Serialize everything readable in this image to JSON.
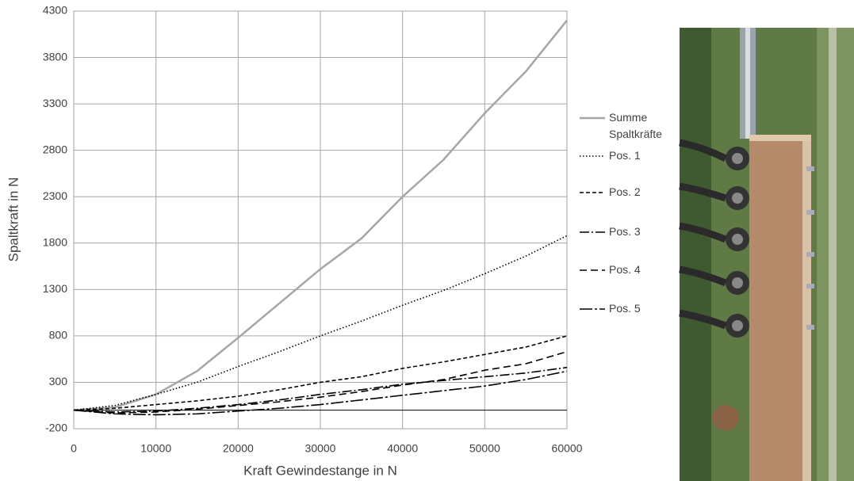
{
  "chart_data": {
    "type": "line",
    "x_label": "Kraft Gewindestange in N",
    "y_label": "Spaltkraft in N",
    "x": [
      0,
      5000,
      10000,
      15000,
      20000,
      25000,
      30000,
      35000,
      40000,
      45000,
      50000,
      55000,
      60000
    ],
    "series": [
      {
        "name": "Summe Spaltkräfte",
        "color": "#a6a6a6",
        "style": "solid",
        "values": [
          0,
          30,
          170,
          420,
          780,
          1150,
          1520,
          1850,
          2300,
          2700,
          3200,
          3650,
          4200
        ]
      },
      {
        "name": "Pos. 1",
        "color": "#000000",
        "style": "dotted",
        "values": [
          0,
          50,
          170,
          300,
          470,
          630,
          800,
          960,
          1130,
          1290,
          1470,
          1660,
          1880
        ]
      },
      {
        "name": "Pos. 2",
        "color": "#000000",
        "style": "dashed",
        "values": [
          0,
          20,
          60,
          100,
          150,
          220,
          300,
          360,
          450,
          520,
          600,
          680,
          800
        ]
      },
      {
        "name": "Pos. 3",
        "color": "#000000",
        "style": "dash-dot",
        "values": [
          0,
          -20,
          -10,
          20,
          60,
          110,
          170,
          220,
          280,
          320,
          360,
          400,
          460
        ]
      },
      {
        "name": "Pos. 4",
        "color": "#000000",
        "style": "long-dash",
        "values": [
          0,
          -30,
          -20,
          10,
          50,
          90,
          140,
          200,
          270,
          330,
          430,
          500,
          630
        ]
      },
      {
        "name": "Pos. 5",
        "color": "#000000",
        "style": "long-dash-dot",
        "values": [
          0,
          -40,
          -50,
          -40,
          -10,
          20,
          60,
          110,
          160,
          210,
          260,
          330,
          420
        ]
      }
    ],
    "xlim": [
      0,
      60000
    ],
    "xticks": [
      0,
      10000,
      20000,
      30000,
      40000,
      50000,
      60000
    ],
    "ylim": [
      -200,
      4300
    ],
    "yticks": [
      -200,
      300,
      800,
      1300,
      1800,
      2300,
      2800,
      3300,
      3800,
      4300
    ],
    "grid": true,
    "legend": "right"
  }
}
